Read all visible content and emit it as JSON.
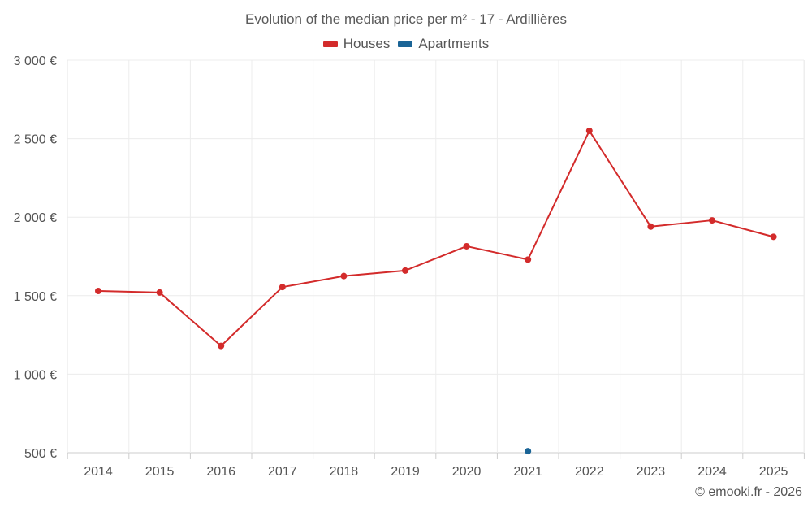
{
  "chart_data": {
    "type": "line",
    "title": "Evolution of the median price per m² - 17 - Ardillières",
    "categories": [
      "2014",
      "2015",
      "2016",
      "2017",
      "2018",
      "2019",
      "2020",
      "2021",
      "2022",
      "2023",
      "2024",
      "2025"
    ],
    "series": [
      {
        "name": "Houses",
        "color": "#d32b2b",
        "values": [
          1530,
          1520,
          1180,
          1555,
          1625,
          1660,
          1815,
          1730,
          2550,
          1940,
          1980,
          1875
        ]
      },
      {
        "name": "Apartments",
        "color": "#1a6496",
        "values": [
          null,
          null,
          null,
          null,
          null,
          null,
          null,
          510,
          null,
          null,
          null,
          null
        ]
      }
    ],
    "ylim": [
      500,
      3000
    ],
    "yticks": [
      500,
      1000,
      1500,
      2000,
      2500,
      3000
    ],
    "ytick_labels": [
      "500 €",
      "1 000 €",
      "1 500 €",
      "2 000 €",
      "2 500 €",
      "3 000 €"
    ],
    "grid": true,
    "legend_position": "top-center",
    "xlabel": "",
    "ylabel": ""
  },
  "credit": "© emooki.fr - 2026"
}
